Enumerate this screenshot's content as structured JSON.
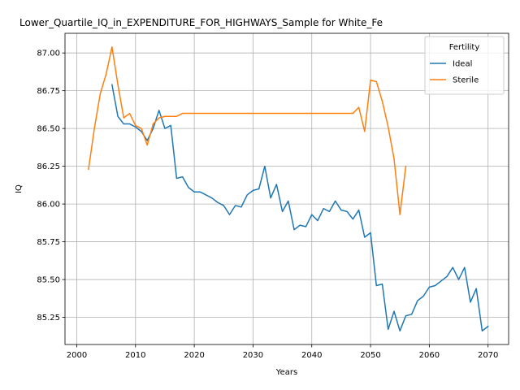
{
  "chart_data": {
    "type": "line",
    "title": "Lower_Quartile_IQ_in_EXPENDITURE_FOR_HIGHWAYS_Sample for White_Fe",
    "xlabel": "Years",
    "ylabel": "IQ",
    "xlim": [
      1998,
      2073.5
    ],
    "ylim": [
      85.07,
      87.13
    ],
    "xticks": [
      2000,
      2010,
      2020,
      2030,
      2040,
      2050,
      2060,
      2070
    ],
    "yticks": [
      85.25,
      85.5,
      85.75,
      86.0,
      86.25,
      86.5,
      86.75,
      87.0
    ],
    "ytick_labels": [
      "85.25",
      "85.50",
      "85.75",
      "86.00",
      "86.25",
      "86.50",
      "86.75",
      "87.00"
    ],
    "grid": true,
    "legend": {
      "title": "Fertility",
      "placement": "top-right"
    },
    "series": [
      {
        "name": "Ideal",
        "color": "#1f77b4",
        "x": [
          2006,
          2007,
          2008,
          2009,
          2010,
          2011,
          2012,
          2013,
          2014,
          2015,
          2016,
          2017,
          2018,
          2019,
          2020,
          2021,
          2022,
          2023,
          2024,
          2025,
          2026,
          2027,
          2028,
          2029,
          2030,
          2031,
          2032,
          2033,
          2034,
          2035,
          2036,
          2037,
          2038,
          2039,
          2040,
          2041,
          2042,
          2043,
          2044,
          2045,
          2046,
          2047,
          2048,
          2049,
          2050,
          2051,
          2052,
          2053,
          2054,
          2055,
          2056,
          2057,
          2058,
          2059,
          2060,
          2061,
          2062,
          2063,
          2064,
          2065,
          2066,
          2067,
          2068,
          2069,
          2070
        ],
        "y": [
          86.79,
          86.58,
          86.53,
          86.53,
          86.51,
          86.48,
          86.42,
          86.5,
          86.62,
          86.5,
          86.52,
          86.17,
          86.18,
          86.11,
          86.08,
          86.08,
          86.06,
          86.04,
          86.01,
          85.99,
          85.93,
          85.99,
          85.98,
          86.06,
          86.09,
          86.1,
          86.25,
          86.04,
          86.13,
          85.95,
          86.02,
          85.83,
          85.86,
          85.85,
          85.93,
          85.89,
          85.97,
          85.95,
          86.02,
          85.96,
          85.95,
          85.9,
          85.96,
          85.78,
          85.81,
          85.46,
          85.47,
          85.17,
          85.29,
          85.16,
          85.26,
          85.27,
          85.36,
          85.39,
          85.45,
          85.46,
          85.49,
          85.52,
          85.58,
          85.5,
          85.58,
          85.35,
          85.44,
          85.16,
          85.19
        ]
      },
      {
        "name": "Sterile",
        "color": "#ff7f0e",
        "x": [
          2002,
          2003,
          2004,
          2005,
          2006,
          2007,
          2008,
          2009,
          2010,
          2011,
          2012,
          2013,
          2014,
          2015,
          2016,
          2017,
          2018,
          2019,
          2020,
          2021,
          2022,
          2023,
          2024,
          2025,
          2026,
          2027,
          2028,
          2029,
          2030,
          2031,
          2032,
          2033,
          2034,
          2035,
          2036,
          2037,
          2038,
          2039,
          2040,
          2041,
          2042,
          2043,
          2044,
          2045,
          2046,
          2047,
          2048,
          2049,
          2050,
          2051,
          2052,
          2053,
          2054,
          2055,
          2056
        ],
        "y": [
          86.23,
          86.5,
          86.73,
          86.86,
          87.04,
          86.79,
          86.57,
          86.6,
          86.52,
          86.5,
          86.39,
          86.53,
          86.57,
          86.58,
          86.58,
          86.58,
          86.6,
          86.6,
          86.6,
          86.6,
          86.6,
          86.6,
          86.6,
          86.6,
          86.6,
          86.6,
          86.6,
          86.6,
          86.6,
          86.6,
          86.6,
          86.6,
          86.6,
          86.6,
          86.6,
          86.6,
          86.6,
          86.6,
          86.6,
          86.6,
          86.6,
          86.6,
          86.6,
          86.6,
          86.6,
          86.6,
          86.64,
          86.48,
          86.82,
          86.81,
          86.68,
          86.51,
          86.3,
          85.93,
          86.25
        ]
      }
    ]
  }
}
